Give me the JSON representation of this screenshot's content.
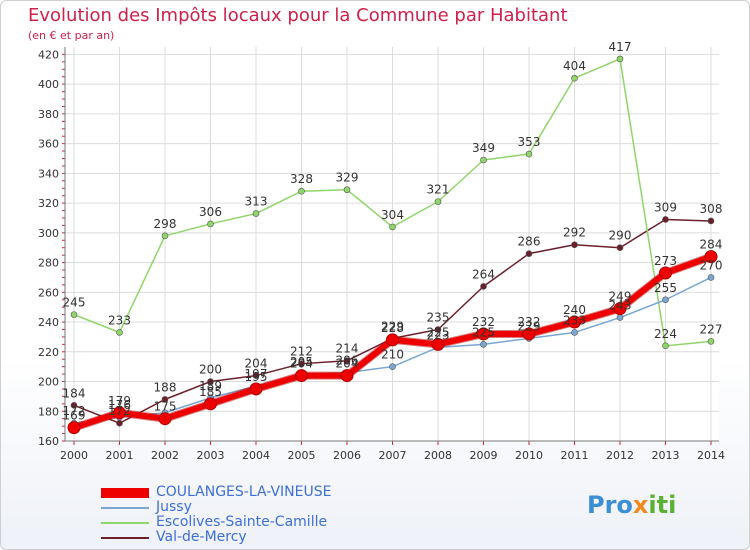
{
  "title": "Evolution des Impôts locaux pour la Commune par Habitant",
  "subtitle": "(en € et par an)",
  "logo": {
    "part1": "Pro",
    "part2": "x",
    "part3": "iti"
  },
  "chart_data": {
    "type": "line",
    "title": "Evolution des Impôts locaux pour la Commune par Habitant",
    "subtitle": "(en € et par an)",
    "x": [
      "2000",
      "2001",
      "2002",
      "2003",
      "2004",
      "2005",
      "2006",
      "2007",
      "2008",
      "2009",
      "2010",
      "2011",
      "2012",
      "2013",
      "2014"
    ],
    "ylim": [
      160,
      420
    ],
    "yticks": [
      160,
      180,
      200,
      220,
      240,
      260,
      280,
      300,
      320,
      340,
      360,
      380,
      400,
      420
    ],
    "grid": true,
    "legend": "bottom-left",
    "series": [
      {
        "name": "Val-de-Mercy",
        "color": "#6b1f2a",
        "width": 1.5,
        "marker": 3,
        "labels": true,
        "values": [
          184,
          172,
          188,
          200,
          204,
          212,
          214,
          229,
          235,
          264,
          286,
          292,
          290,
          309,
          308
        ]
      },
      {
        "name": "Escolives-Sainte-Camille",
        "color": "#8fd66a",
        "width": 1.5,
        "marker": 3,
        "labels": true,
        "values": [
          245,
          233,
          298,
          306,
          313,
          328,
          329,
          304,
          321,
          349,
          353,
          404,
          417,
          224,
          227
        ]
      },
      {
        "name": "Jussy",
        "color": "#7aa6d4",
        "width": 1.5,
        "marker": 3,
        "labels": false,
        "values": [
          172,
          176,
          179,
          189,
          197,
          205,
          206,
          210,
          223,
          225,
          229,
          233,
          243,
          255,
          270
        ]
      },
      {
        "name": "COULANGES-LA-VINEUSE",
        "color": "#ee0000",
        "width": 6,
        "marker": 6,
        "labels": true,
        "values": [
          169,
          179,
          175,
          185,
          195,
          204,
          204,
          228,
          225,
          232,
          232,
          240,
          249,
          273,
          284
        ]
      }
    ],
    "extra_labels": [
      {
        "x": "2000",
        "value": 172
      },
      {
        "x": "2001",
        "value": 176
      },
      {
        "x": "2003",
        "value": 189
      },
      {
        "x": "2004",
        "value": 197
      },
      {
        "x": "2005",
        "value": 205
      },
      {
        "x": "2006",
        "value": 206
      },
      {
        "x": "2007",
        "value": 210
      },
      {
        "x": "2008",
        "value": 223
      },
      {
        "x": "2009",
        "value": 225
      },
      {
        "x": "2010",
        "value": 229
      },
      {
        "x": "2011",
        "value": 233
      },
      {
        "x": "2012",
        "value": 243
      },
      {
        "x": "2013",
        "value": 255
      },
      {
        "x": "2014",
        "value": 270
      }
    ]
  },
  "legend": [
    {
      "label": "COULANGES-LA-VINEUSE",
      "color": "#ee0000",
      "thick": true
    },
    {
      "label": "Jussy",
      "color": "#7aa6d4",
      "thick": false
    },
    {
      "label": "Escolives-Sainte-Camille",
      "color": "#8fd66a",
      "thick": false
    },
    {
      "label": "Val-de-Mercy",
      "color": "#6b1f2a",
      "thick": false
    }
  ]
}
